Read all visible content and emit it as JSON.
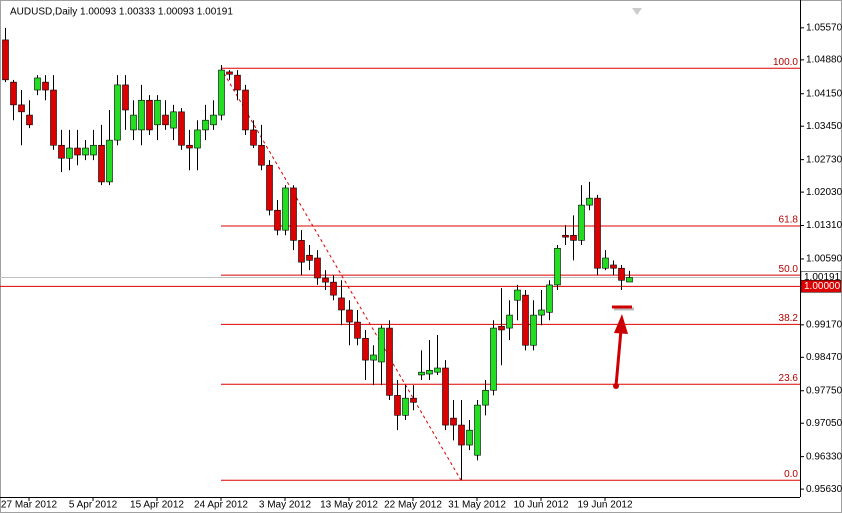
{
  "chart_data": {
    "type": "candlestick",
    "title": "AUDUSD,Daily  1.00093 1.00333 1.00093 1.00191",
    "categories": [
      null,
      null,
      null,
      "27 Mar 2012",
      null,
      null,
      null,
      null,
      null,
      null,
      null,
      "5 Apr 2012",
      null,
      null,
      null,
      null,
      null,
      null,
      null,
      "15 Apr 2012",
      null,
      null,
      null,
      null,
      null,
      null,
      null,
      "24 Apr 2012",
      null,
      null,
      null,
      null,
      null,
      null,
      null,
      "3 May 2012",
      null,
      null,
      null,
      null,
      null,
      null,
      null,
      "13 May 2012",
      null,
      null,
      null,
      null,
      null,
      null,
      null,
      "22 May 2012",
      null,
      null,
      null,
      null,
      null,
      null,
      null,
      "31 May 2012",
      null,
      null,
      null,
      null,
      null,
      null,
      null,
      "10 Jun 2012",
      null,
      null,
      null,
      null,
      null,
      null,
      null,
      "19 Jun 2012",
      null,
      null,
      null
    ],
    "open": [
      1.0531,
      1.044,
      1.0391,
      1.0369,
      1.0423,
      1.044,
      1.0423,
      1.0304,
      1.0276,
      1.0298,
      1.0283,
      1.0283,
      1.0304,
      1.0225,
      1.0315,
      1.0434,
      1.0337,
      1.0337,
      1.0401,
      1.0348,
      1.0369,
      1.0341,
      1.0376,
      1.0304,
      1.0298,
      1.0337,
      1.0348,
      1.0369,
      1.0462,
      1.0455,
      1.0423,
      1.0337,
      1.0304,
      1.0261,
      1.0164,
      1.0121,
      1.0212,
      1.0099,
      1.0067,
      1.0061,
      1.0018,
      1.0009,
      0.9975,
      0.9949,
      0.9923,
      0.9888,
      0.9841,
      0.9837,
      0.991,
      0.9765,
      0.9722,
      0.9759,
      0.9809,
      0.9811,
      0.9815,
      0.9824,
      0.9716,
      0.9701,
      0.9658,
      0.9636,
      0.9744,
      0.9776,
      0.9914,
      0.991,
      0.997,
      0.9981,
      0.9873,
      0.9938,
      0.9944,
      1.0003,
      1.011,
      1.011,
      1.0099,
      1.0175,
      1.019,
      1.0039,
      1.0046,
      1.0039,
      1.00093
    ],
    "high": [
      1.0557,
      1.0445,
      1.0423,
      1.0401,
      1.0455,
      1.0455,
      1.0455,
      1.0337,
      1.0337,
      1.0337,
      1.0315,
      1.0337,
      1.0348,
      1.038,
      1.0455,
      1.0455,
      1.0401,
      1.0434,
      1.0412,
      1.0412,
      1.0401,
      1.0391,
      1.0384,
      1.0337,
      1.0358,
      1.0391,
      1.0401,
      1.0477,
      1.0466,
      1.0466,
      1.0434,
      1.0358,
      1.0348,
      1.0272,
      1.0186,
      1.0218,
      1.0218,
      1.0121,
      1.0089,
      1.0078,
      1.0035,
      1.0024,
      1.0013,
      0.997,
      0.9949,
      0.9906,
      0.9873,
      0.9916,
      0.9927,
      0.9798,
      0.9787,
      0.9787,
      0.9862,
      0.9884,
      0.9895,
      0.9841,
      0.9755,
      0.9755,
      0.9712,
      0.9755,
      0.9798,
      0.9927,
      0.9996,
      0.997,
      1.0003,
      0.9992,
      0.997,
      0.9992,
      1.0013,
      1.0089,
      1.0132,
      1.0153,
      1.0218,
      1.0225,
      1.0197,
      1.0078,
      1.0056,
      1.0046,
      1.00333
    ],
    "low": [
      1.044,
      1.0358,
      1.0304,
      1.0341,
      1.0412,
      1.0401,
      1.0294,
      1.0246,
      1.025,
      1.0261,
      1.0272,
      1.0272,
      1.0218,
      1.0218,
      1.0304,
      1.0337,
      1.0315,
      1.0304,
      1.0326,
      1.0315,
      1.0337,
      1.0315,
      1.0294,
      1.025,
      1.025,
      1.0315,
      1.0337,
      1.0358,
      1.0445,
      1.0401,
      1.0326,
      1.0298,
      1.025,
      1.0153,
      1.011,
      1.011,
      1.0078,
      1.0024,
      1.0035,
      1.0003,
      0.9992,
      0.997,
      0.9916,
      0.9873,
      0.9873,
      0.9798,
      0.9787,
      0.9787,
      0.9755,
      0.969,
      0.9712,
      0.9733,
      0.9798,
      0.9798,
      0.9809,
      0.969,
      0.9668,
      0.9582,
      0.9647,
      0.9625,
      0.9722,
      0.9765,
      0.983,
      0.9884,
      0.9927,
      0.9862,
      0.9862,
      0.9916,
      0.9927,
      0.9992,
      1.0089,
      1.0056,
      1.0089,
      1.0164,
      1.0024,
      1.0035,
      1.0024,
      0.9992,
      1.00093
    ],
    "close": [
      1.0445,
      1.0391,
      1.0376,
      1.0348,
      1.0449,
      1.0423,
      1.0304,
      1.0276,
      1.0298,
      1.0283,
      1.0298,
      1.0304,
      1.0225,
      1.0315,
      1.0434,
      1.038,
      1.0369,
      1.0401,
      1.0337,
      1.0401,
      1.0348,
      1.0376,
      1.0304,
      1.0298,
      1.0337,
      1.0358,
      1.0369,
      1.0466,
      1.0457,
      1.0423,
      1.0337,
      1.0304,
      1.0261,
      1.0164,
      1.0121,
      1.0212,
      1.0099,
      1.0052,
      1.0056,
      1.0018,
      1.0009,
      0.9981,
      0.9949,
      0.9923,
      0.9888,
      0.9841,
      0.9852,
      0.991,
      0.9765,
      0.9722,
      0.9759,
      0.975,
      0.9815,
      0.9819,
      0.9824,
      0.9701,
      0.9701,
      0.9658,
      0.969,
      0.9744,
      0.9776,
      0.991,
      0.9906,
      0.9938,
      0.9992,
      0.9873,
      0.9938,
      0.9949,
      1.0003,
      1.0082,
      1.0106,
      1.0099,
      1.0175,
      1.019,
      1.0039,
      1.0061,
      1.0039,
      1.0013,
      1.00191
    ],
    "up_color": "#22dd22",
    "down_color": "#dd0000",
    "ylim": [
      0.9546,
      1.0617
    ],
    "yticks": [
      {
        "value": 1.0557,
        "label": "1.05570"
      },
      {
        "value": 1.0488,
        "label": "1.04880"
      },
      {
        "value": 1.0415,
        "label": "1.04150"
      },
      {
        "value": 1.0345,
        "label": "1.03450"
      },
      {
        "value": 1.0273,
        "label": "1.02730"
      },
      {
        "value": 1.0203,
        "label": "1.02030"
      },
      {
        "value": 1.0131,
        "label": "1.01310"
      },
      {
        "value": 1.0059,
        "label": "1.00590"
      },
      {
        "value": 0.9917,
        "label": "0.99170"
      },
      {
        "value": 0.9847,
        "label": "0.98470"
      },
      {
        "value": 0.9775,
        "label": "0.97750"
      },
      {
        "value": 0.9705,
        "label": "0.97050"
      },
      {
        "value": 0.9633,
        "label": "0.96330"
      },
      {
        "value": 0.9563,
        "label": "0.95630"
      }
    ],
    "fib_color": "#dd0000",
    "fib_levels": [
      {
        "label": "100.0",
        "value": 1.047
      },
      {
        "label": "61.8",
        "value": 1.013
      },
      {
        "label": "50.0",
        "value": 1.0024
      },
      {
        "label": "38.2",
        "value": 0.9918
      },
      {
        "label": "23.6",
        "value": 0.9789
      },
      {
        "label": "0.0",
        "value": 0.9582
      }
    ],
    "trendline": {
      "x": [
        27,
        57
      ],
      "y": [
        1.047,
        0.9582
      ]
    },
    "price_lines": [
      {
        "label": "1.00191",
        "value": 1.00191,
        "color": "#c0c0c0"
      },
      {
        "label": "1.00000",
        "value": 1.0,
        "color": "#dd0000"
      }
    ]
  }
}
